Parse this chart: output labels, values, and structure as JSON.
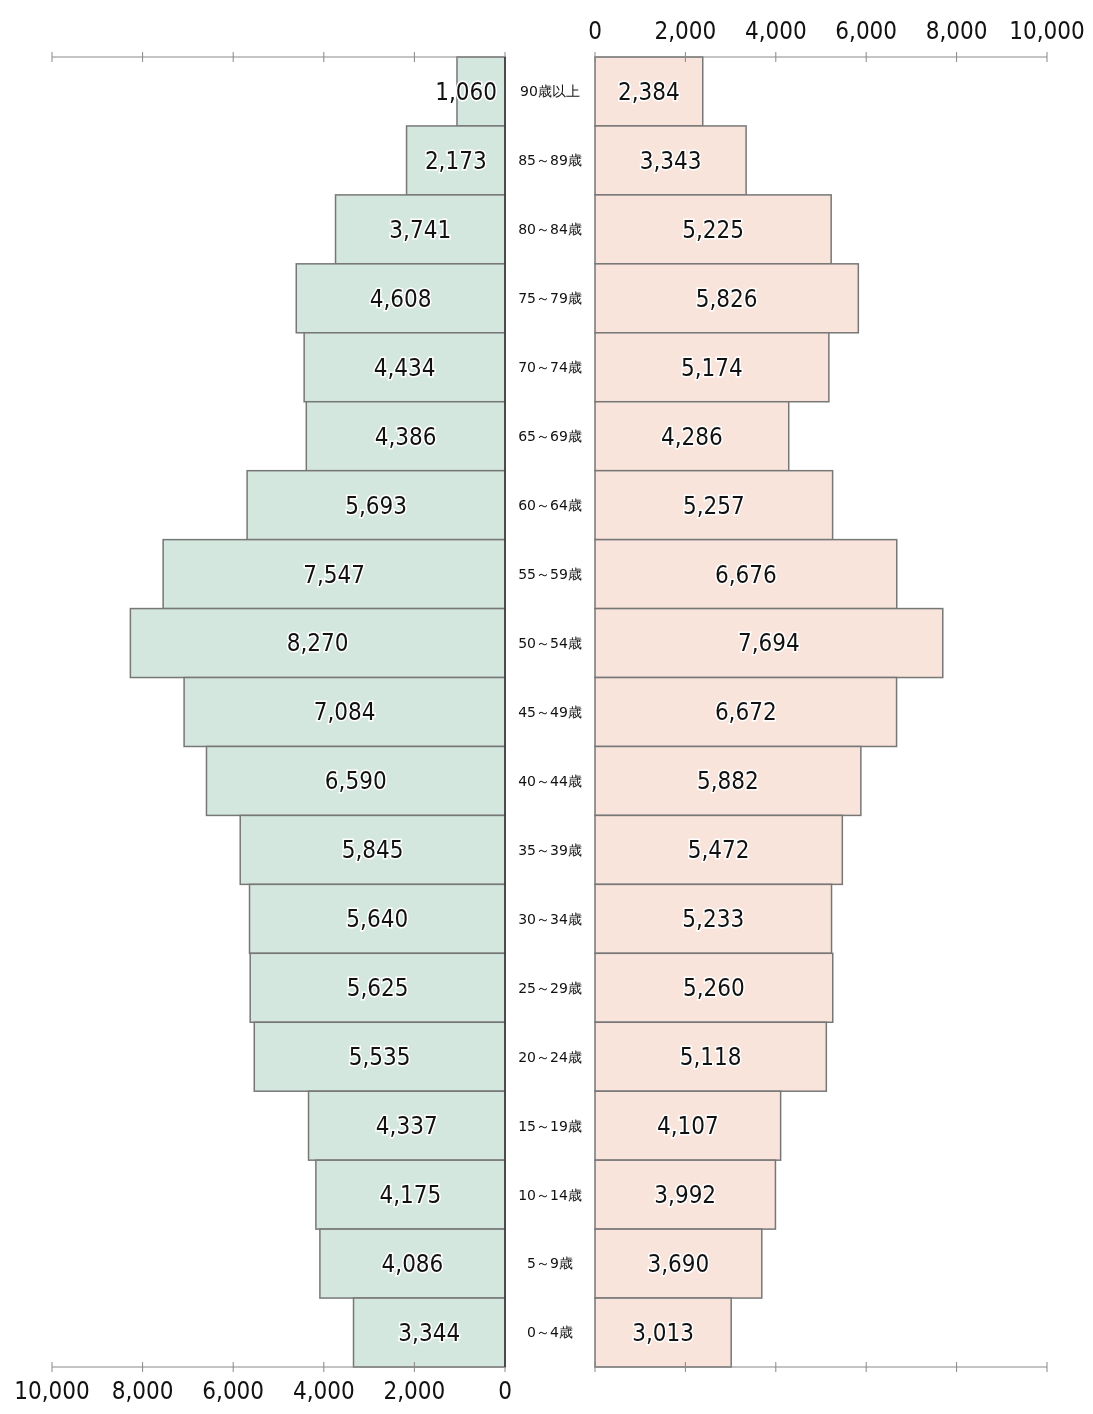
{
  "chart_data": [
    {
      "type": "bar",
      "orientation": "horizontal",
      "categories": [
        "90歳以上",
        "85～89歳",
        "80～84歳",
        "75～79歳",
        "70～74歳",
        "65～69歳",
        "60～64歳",
        "55～59歳",
        "50～54歳",
        "45～49歳",
        "40～44歳",
        "35～39歳",
        "30～34歳",
        "25～29歳",
        "20～24歳",
        "15～19歳",
        "10～14歳",
        "5～9歳",
        "0～4歳"
      ],
      "values": [
        1060,
        2173,
        3741,
        4608,
        4434,
        4386,
        5693,
        7547,
        8270,
        7084,
        6590,
        5845,
        5640,
        5625,
        5535,
        4337,
        4175,
        4086,
        3344
      ],
      "value_labels": [
        "1,060",
        "2,173",
        "3,741",
        "4,608",
        "4,434",
        "4,386",
        "5,693",
        "7,547",
        "8,270",
        "7,084",
        "6,590",
        "5,845",
        "5,640",
        "5,625",
        "5,535",
        "4,337",
        "4,175",
        "4,086",
        "3,344"
      ],
      "color": "#d4e7de",
      "xlim": [
        10000,
        0
      ],
      "xticks": [
        {
          "value": 10000,
          "label": "10,000"
        },
        {
          "value": 8000,
          "label": "8,000"
        },
        {
          "value": 6000,
          "label": "6,000"
        },
        {
          "value": 4000,
          "label": "4,000"
        },
        {
          "value": 2000,
          "label": "2,000"
        },
        0
      ],
      "grid": false
    },
    {
      "type": "bar",
      "orientation": "horizontal",
      "categories": [
        null,
        null,
        null,
        null,
        null,
        null,
        null,
        null,
        null,
        null,
        null,
        null,
        null,
        null,
        null,
        null,
        null,
        null,
        null
      ],
      "tick_labels": "x",
      "values": [
        2384,
        3343,
        5225,
        5826,
        5174,
        4286,
        5257,
        6676,
        7694,
        6672,
        5882,
        5472,
        5233,
        5260,
        5118,
        4107,
        3992,
        3690,
        3013
      ],
      "value_labels": [
        "2,384",
        "3,343",
        "5,225",
        "5,826",
        "5,174",
        "4,286",
        "5,257",
        "6,676",
        "7,694",
        "6,672",
        "5,882",
        "5,472",
        "5,233",
        "5,260",
        "5,118",
        "4,107",
        "3,992",
        "3,690",
        "3,013"
      ],
      "color": "#f8e4da",
      "xlim": [
        0,
        10000
      ],
      "xticks": [
        0,
        {
          "value": 2000,
          "label": "2,000"
        },
        {
          "value": 4000,
          "label": "4,000"
        },
        {
          "value": 6000,
          "label": "6,000"
        },
        {
          "value": 8000,
          "label": "8,000"
        },
        {
          "value": 10000,
          "label": "10,000"
        }
      ],
      "grid": false
    }
  ]
}
